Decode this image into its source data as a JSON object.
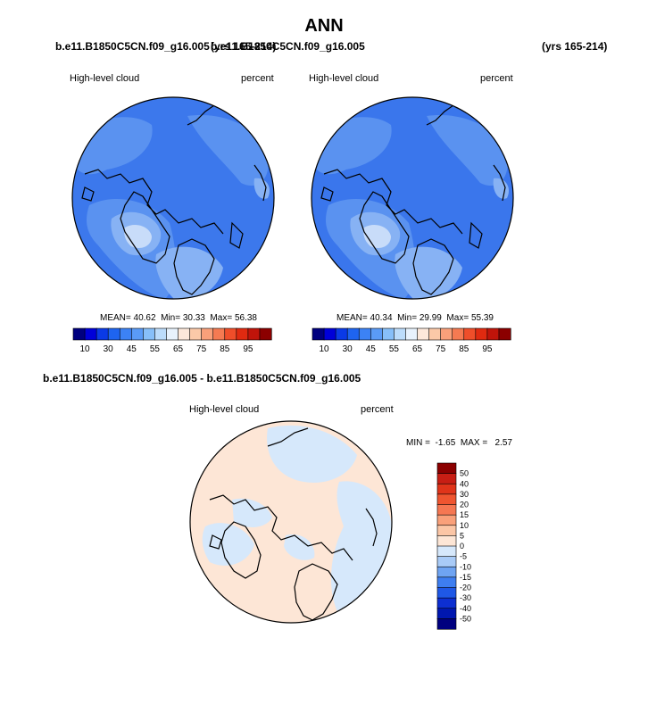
{
  "title": "ANN",
  "left_panel": {
    "case": "b.e11.B1850C5CN.f09_g16.005",
    "years": "(yrs 165-214)",
    "variable": "High-level cloud",
    "units": "percent",
    "stats": {
      "mean": "40.62",
      "min": "30.33",
      "max": "56.38"
    }
  },
  "right_panel": {
    "case": "b.e11.B1850C5CN.f09_g16.005",
    "years": "(yrs 165-214)",
    "variable": "High-level cloud",
    "units": "percent",
    "stats": {
      "mean": "40.34",
      "min": "29.99",
      "max": "55.39"
    }
  },
  "diff_panel": {
    "title": "b.e11.B1850C5CN.f09_g16.005 - b.e11.B1850C5CN.f09_g16.005",
    "variable": "High-level cloud",
    "units": "percent",
    "stats": {
      "min": "-1.65",
      "max": "2.57"
    }
  },
  "horizontal_colorbar": {
    "labels": [
      "10",
      "30",
      "45",
      "55",
      "65",
      "75",
      "85",
      "95"
    ],
    "colors": [
      "#00007f",
      "#0000d9",
      "#0a3ae6",
      "#1e64f0",
      "#3c82f5",
      "#5a9bf7",
      "#87bff9",
      "#bcdcfb",
      "#e8f2fd",
      "#fde8da",
      "#fbc9a8",
      "#f9a07a",
      "#f57a52",
      "#ef4e2a",
      "#e02a10",
      "#c0140a",
      "#8b0000"
    ]
  },
  "vertical_colorbar": {
    "labels": [
      "50",
      "40",
      "30",
      "20",
      "15",
      "10",
      "5",
      "0",
      "-5",
      "-10",
      "-15",
      "-20",
      "-30",
      "-40",
      "-50"
    ],
    "colors": [
      "#8b0000",
      "#c81e14",
      "#e0341a",
      "#ef5530",
      "#f57752",
      "#f9a07a",
      "#fbc6a6",
      "#fde6d6",
      "#d6e8fb",
      "#a9cbf7",
      "#6fa4f2",
      "#3e7ef0",
      "#1f58e6",
      "#0d2fd1",
      "#0017b0",
      "#00007f"
    ]
  },
  "map_colors": {
    "base_left": "#3c78ec",
    "base_right": "#3a76ec",
    "mid": "#5a92f0",
    "light": "#87b2f4",
    "lightest": "#c8dcf9",
    "diff_base": "#fde6d6",
    "diff_blue": "#d6e8fb"
  }
}
